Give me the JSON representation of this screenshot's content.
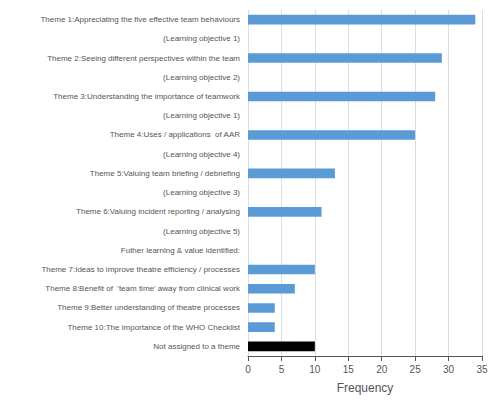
{
  "chart_data": {
    "type": "bar",
    "orientation": "horizontal",
    "categories": [
      "Not assigned to a theme",
      "Theme 10:The importance of the WHO Checklist",
      "Theme 9:Better understanding of theatre processes",
      "Theme 8:Benefit of  'team time' away from clinical work",
      "Theme 7:Ideas to improve theatre efficiency / processes",
      "Futher learning & value identified:",
      "(Learning objective 5)",
      "Theme 6:Valuing incident reporting / analysing",
      "(Learning objective 3)",
      "Theme 5:Valuing team briefing / debriefing",
      "(Learning objective 4)",
      "Theme 4:Uses / applications  of AAR",
      "(Learning objective 1)",
      "Theme 3:Understanding the importance of teamwork",
      "(Learning objective 2)",
      "Theme 2:Seeing different perspectives within the team",
      "(Learning objective 1)",
      "Theme 1:Appreciating the five effective team behaviours"
    ],
    "values": [
      10,
      4,
      4,
      7,
      10,
      0,
      0,
      11,
      0,
      13,
      0,
      25,
      0,
      28,
      0,
      29,
      0,
      34
    ],
    "colors": [
      "#000000",
      "#5b9bd5",
      "#5b9bd5",
      "#5b9bd5",
      "#5b9bd5",
      null,
      null,
      "#5b9bd5",
      null,
      "#5b9bd5",
      null,
      "#5b9bd5",
      null,
      "#5b9bd5",
      null,
      "#5b9bd5",
      null,
      "#5b9bd5"
    ],
    "xlabel": "Frequency",
    "xlim": [
      0,
      35
    ],
    "xticks": [
      0,
      5,
      10,
      15,
      20,
      25,
      30,
      35
    ],
    "grid": true
  }
}
